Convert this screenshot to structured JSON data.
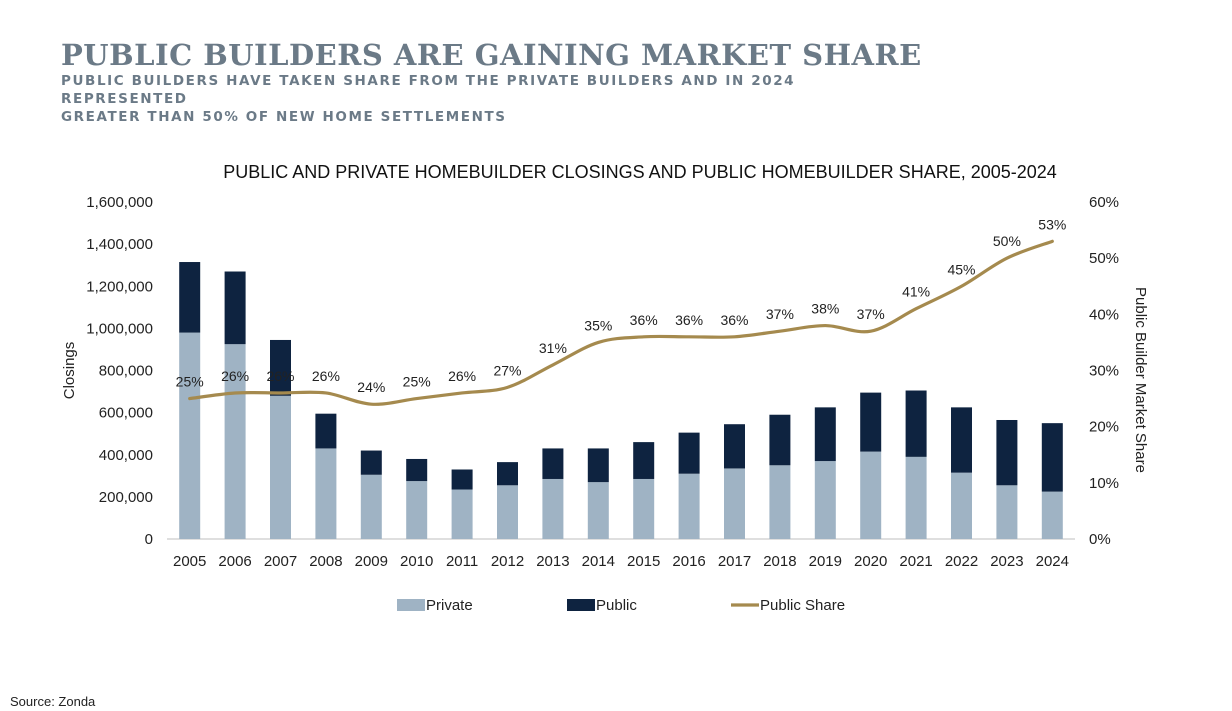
{
  "header": {
    "title": "PUBLIC BUILDERS ARE GAINING MARKET SHARE",
    "subtitle_line1": "PUBLIC BUILDERS HAVE TAKEN SHARE FROM THE PRIVATE BUILDERS AND IN 2024 REPRESENTED",
    "subtitle_line2": "GREATER THAN 50% OF NEW HOME SETTLEMENTS"
  },
  "footer": {
    "source": "Source: Zonda"
  },
  "chart_data": {
    "type": "bar",
    "stacked": true,
    "title": "PUBLIC AND PRIVATE HOMEBUILDER CLOSINGS AND PUBLIC HOMEBUILDER SHARE, 2005-2024",
    "xlabel": "",
    "ylabel": "Closings",
    "y2label": "Public Builder Market Share",
    "ylim": [
      0,
      1600000
    ],
    "y2lim": [
      0,
      60
    ],
    "yticks": [
      "0",
      "200,000",
      "400,000",
      "600,000",
      "800,000",
      "1,000,000",
      "1,200,000",
      "1,400,000",
      "1,600,000"
    ],
    "y2ticks": [
      "0%",
      "10%",
      "20%",
      "30%",
      "40%",
      "50%",
      "60%"
    ],
    "categories": [
      "2005",
      "2006",
      "2007",
      "2008",
      "2009",
      "2010",
      "2011",
      "2012",
      "2013",
      "2014",
      "2015",
      "2016",
      "2017",
      "2018",
      "2019",
      "2020",
      "2021",
      "2022",
      "2023",
      "2024"
    ],
    "series": [
      {
        "name": "Private",
        "kind": "bar",
        "color": "#9fb3c4",
        "values": [
          980000,
          925000,
          680000,
          430000,
          305000,
          275000,
          235000,
          255000,
          285000,
          270000,
          285000,
          310000,
          335000,
          350000,
          370000,
          415000,
          390000,
          315000,
          255000,
          225000
        ]
      },
      {
        "name": "Public",
        "kind": "bar",
        "color": "#0e2340",
        "values": [
          335000,
          345000,
          265000,
          165000,
          115000,
          105000,
          95000,
          110000,
          145000,
          160000,
          175000,
          195000,
          210000,
          240000,
          255000,
          280000,
          315000,
          310000,
          310000,
          325000
        ]
      },
      {
        "name": "Public Share",
        "kind": "line",
        "axis": "right",
        "color": "#a58a4e",
        "values": [
          25,
          26,
          26,
          26,
          24,
          25,
          26,
          27,
          31,
          35,
          36,
          36,
          36,
          37,
          38,
          37,
          41,
          45,
          50,
          53
        ],
        "labels": [
          "25%",
          "26%",
          "26%",
          "26%",
          "24%",
          "25%",
          "26%",
          "27%",
          "31%",
          "35%",
          "36%",
          "36%",
          "36%",
          "37%",
          "38%",
          "37%",
          "41%",
          "45%",
          "50%",
          "53%"
        ]
      }
    ],
    "legend_position": "bottom",
    "grid": false
  }
}
